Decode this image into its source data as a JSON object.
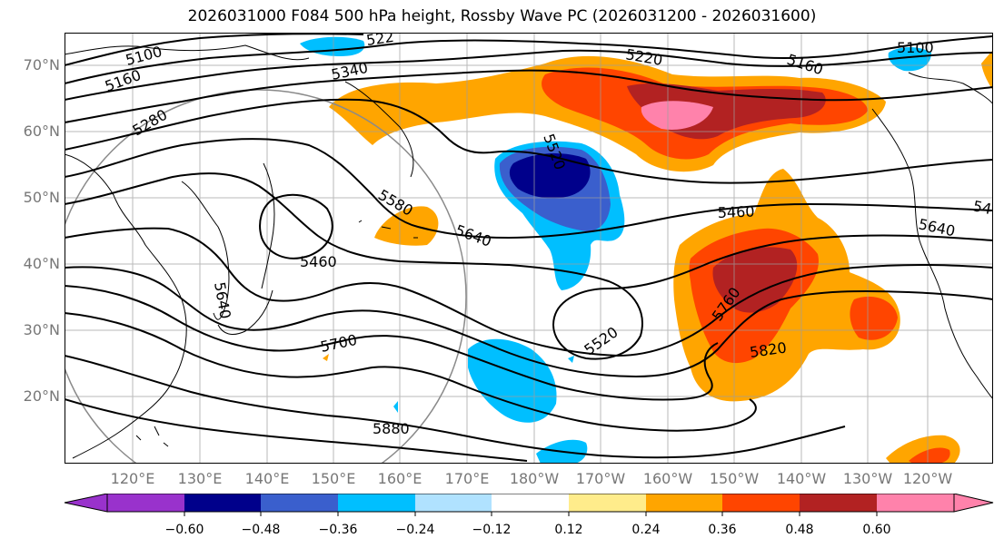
{
  "title": "2026031000 F084 500 hPa height, Rossby Wave PC (2026031200 - 2026031600)",
  "latitude_labels": [
    "70°N",
    "60°N",
    "50°N",
    "40°N",
    "30°N",
    "20°N"
  ],
  "longitude_labels": [
    "120°E",
    "130°E",
    "140°E",
    "150°E",
    "160°E",
    "170°E",
    "180°W",
    "170°W",
    "160°W",
    "150°W",
    "140°W",
    "130°W",
    "120°W"
  ],
  "contour_labels": [
    "5100",
    "5160",
    "5280",
    "5340",
    "522",
    "5220",
    "5160",
    "5100",
    "5520",
    "5580",
    "5640",
    "5460",
    "5460",
    "5640",
    "5760",
    "5820",
    "5520",
    "5700",
    "5880",
    "5640",
    "54"
  ],
  "colorbar": {
    "ticks": [
      "−0.60",
      "−0.48",
      "−0.36",
      "−0.24",
      "−0.12",
      "0.12",
      "0.24",
      "0.36",
      "0.48",
      "0.60"
    ],
    "colors": [
      "#9932cc",
      "#00008b",
      "#3a5fcd",
      "#00bfff",
      "#b0e2ff",
      "#ffffff",
      "#ffec8b",
      "#ffa500",
      "#ff4500",
      "#b22222",
      "#ff82ab"
    ]
  }
}
